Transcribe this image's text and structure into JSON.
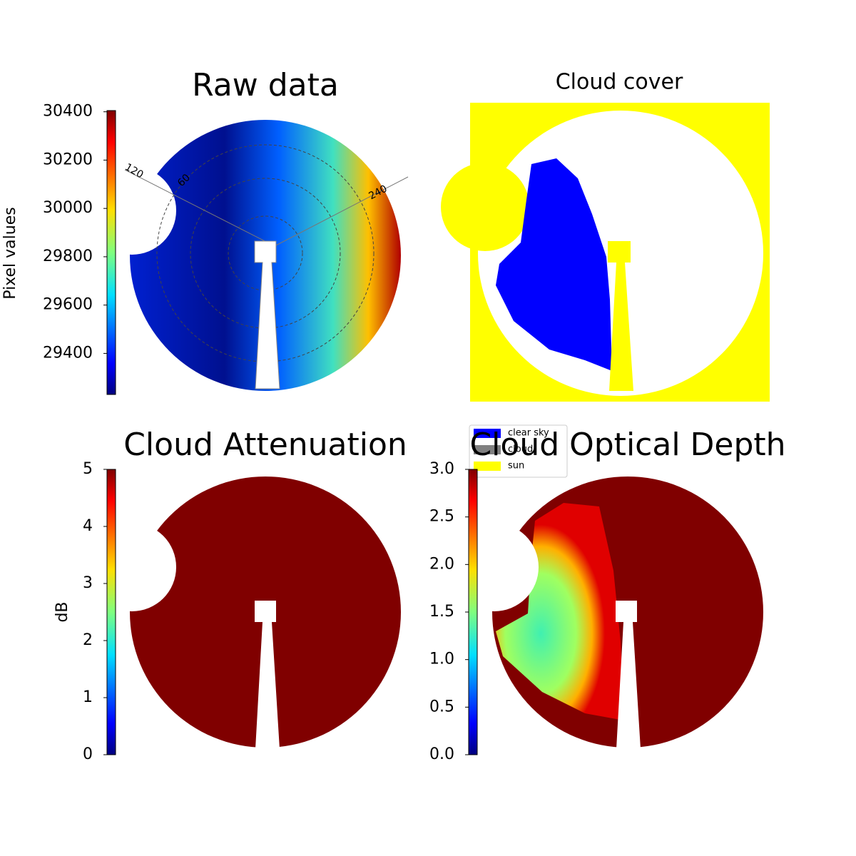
{
  "chart_data": [
    {
      "type": "image",
      "title": "Raw data",
      "colorbar_label": "Pixel values",
      "ylim": [
        29230,
        30405
      ],
      "yticks": [
        29400,
        29600,
        29800,
        30000,
        30200,
        30400
      ],
      "annotations": [
        "120",
        "60",
        "240"
      ]
    },
    {
      "type": "image",
      "title": "Cloud cover",
      "series": [
        {
          "name": "clear sky",
          "color": "#0000ff"
        },
        {
          "name": "cloud",
          "color": "#808080"
        },
        {
          "name": "sun",
          "color": "#ffff00"
        }
      ]
    },
    {
      "type": "image",
      "title": "Cloud Attenuation",
      "colorbar_label": "dB",
      "ylim": [
        0,
        5
      ],
      "yticks": [
        0,
        1,
        2,
        3,
        4,
        5
      ]
    },
    {
      "type": "image",
      "title": "Cloud Optical Depth",
      "ylim": [
        0,
        3
      ],
      "yticks": [
        {
          "value": 0,
          "label": "0.0"
        },
        {
          "value": 0.5,
          "label": "0.5"
        },
        {
          "value": 1,
          "label": "1.0"
        },
        {
          "value": 1.5,
          "label": "1.5"
        },
        {
          "value": 2,
          "label": "2.0"
        },
        {
          "value": 2.5,
          "label": "2.5"
        },
        {
          "value": 3,
          "label": "3.0"
        }
      ]
    }
  ]
}
